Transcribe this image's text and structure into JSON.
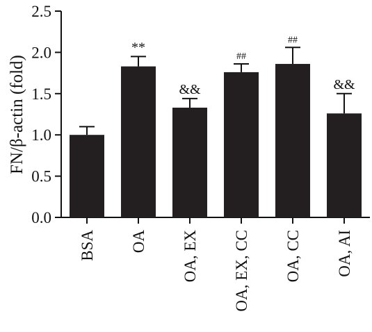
{
  "chart_data": {
    "type": "bar",
    "categories": [
      "BSA",
      "OA",
      "OA, EX",
      "OA, EX, CC",
      "OA, CC",
      "OA, AI"
    ],
    "values": [
      1.0,
      1.83,
      1.33,
      1.76,
      1.86,
      1.26
    ],
    "errors": [
      0.1,
      0.12,
      0.11,
      0.1,
      0.2,
      0.24
    ],
    "annotations": [
      "",
      "**",
      "&&",
      "##",
      "##",
      "&&"
    ],
    "ylabel": "FN/β-actin (fold)",
    "ylim": [
      0,
      2.5
    ],
    "yticks": [
      "0.0",
      "0.5",
      "1.0",
      "1.5",
      "2.0",
      "2.5"
    ],
    "bar_color": "#231f20",
    "grid": false,
    "legend": "none"
  }
}
